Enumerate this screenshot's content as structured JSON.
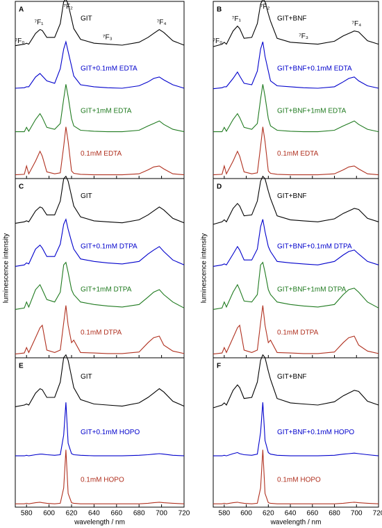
{
  "chart_data": [
    {
      "type": "line",
      "title": "A",
      "xlim": [
        570,
        720
      ],
      "xticks": [
        580,
        600,
        620,
        640,
        660,
        680,
        700,
        720
      ],
      "ylim": [
        0,
        100
      ],
      "annotations": [
        "⁷F₀",
        "⁷F₁",
        "⁷F₂",
        "⁷F₃",
        "⁷F₄"
      ],
      "x": [
        570,
        578,
        580,
        582,
        588,
        592,
        594,
        598,
        605,
        610,
        613,
        615,
        617,
        620,
        622,
        628,
        640,
        652,
        665,
        680,
        688,
        693,
        698,
        702,
        710,
        720
      ],
      "series": [
        {
          "name": "GIT",
          "color": "#000000",
          "values": [
            5,
            8,
            10,
            8,
            30,
            38,
            36,
            22,
            22,
            50,
            95,
            100,
            90,
            60,
            40,
            18,
            10,
            8,
            6,
            12,
            22,
            30,
            38,
            32,
            15,
            6
          ]
        },
        {
          "name": "GIT+0.1mM EDTA",
          "color": "#0000cc",
          "values": [
            5,
            6,
            8,
            8,
            28,
            35,
            30,
            20,
            15,
            45,
            85,
            100,
            80,
            50,
            30,
            12,
            8,
            6,
            5,
            10,
            18,
            25,
            28,
            22,
            12,
            5
          ]
        },
        {
          "name": "GIT+1mM EDTA",
          "color": "#1f7a1f",
          "values": [
            3,
            3,
            12,
            4,
            28,
            40,
            32,
            12,
            8,
            20,
            70,
            100,
            75,
            30,
            15,
            6,
            4,
            3,
            3,
            6,
            15,
            20,
            25,
            18,
            8,
            3
          ]
        },
        {
          "name": "0.1mM EDTA",
          "color": "#b0301f",
          "values": [
            2,
            3,
            20,
            4,
            30,
            50,
            40,
            8,
            4,
            6,
            60,
            100,
            70,
            10,
            5,
            3,
            2,
            2,
            2,
            4,
            12,
            18,
            20,
            14,
            4,
            2
          ]
        }
      ]
    },
    {
      "type": "line",
      "title": "B",
      "xlim": [
        570,
        720
      ],
      "xticks": [
        580,
        600,
        620,
        640,
        660,
        680,
        700,
        720
      ],
      "ylim": [
        0,
        100
      ],
      "annotations": [
        "⁷F₀",
        "⁷F₁",
        "⁷F₂",
        "⁷F₃",
        "⁷F₄"
      ],
      "x": [
        570,
        578,
        580,
        582,
        588,
        592,
        594,
        598,
        605,
        610,
        613,
        615,
        617,
        620,
        622,
        628,
        640,
        652,
        665,
        680,
        688,
        693,
        698,
        702,
        710,
        720
      ],
      "series": [
        {
          "name": "GIT+BNF",
          "color": "#000000",
          "values": [
            3,
            8,
            12,
            8,
            35,
            45,
            40,
            20,
            22,
            50,
            90,
            100,
            95,
            70,
            55,
            20,
            12,
            10,
            8,
            14,
            25,
            30,
            35,
            33,
            15,
            8
          ]
        },
        {
          "name": "GIT+BNF+0.1mM EDTA",
          "color": "#0000cc",
          "values": [
            4,
            6,
            8,
            8,
            25,
            38,
            30,
            15,
            12,
            40,
            85,
            100,
            70,
            40,
            20,
            10,
            8,
            6,
            5,
            8,
            18,
            25,
            28,
            20,
            10,
            5
          ]
        },
        {
          "name": "GIT+BNF+1mM EDTA",
          "color": "#1f7a1f",
          "values": [
            3,
            3,
            12,
            4,
            28,
            40,
            32,
            12,
            8,
            20,
            70,
            100,
            75,
            30,
            15,
            6,
            4,
            3,
            3,
            6,
            15,
            20,
            25,
            18,
            8,
            3
          ]
        },
        {
          "name": "0.1mM EDTA",
          "color": "#b0301f",
          "values": [
            2,
            3,
            20,
            4,
            30,
            50,
            40,
            8,
            4,
            6,
            60,
            100,
            70,
            10,
            5,
            3,
            2,
            2,
            2,
            4,
            12,
            18,
            20,
            14,
            4,
            2
          ]
        }
      ]
    },
    {
      "type": "line",
      "title": "C",
      "xlim": [
        570,
        720
      ],
      "xticks": [
        580,
        600,
        620,
        640,
        660,
        680,
        700,
        720
      ],
      "ylim": [
        0,
        100
      ],
      "ylabel": "luminescence intensity",
      "x": [
        570,
        578,
        580,
        582,
        588,
        592,
        594,
        598,
        605,
        610,
        613,
        615,
        617,
        620,
        622,
        628,
        640,
        652,
        665,
        680,
        688,
        693,
        698,
        702,
        710,
        720
      ],
      "series": [
        {
          "name": "GIT",
          "color": "#000000",
          "values": [
            5,
            8,
            10,
            8,
            30,
            38,
            36,
            22,
            22,
            50,
            95,
            100,
            90,
            60,
            40,
            18,
            10,
            8,
            6,
            12,
            22,
            30,
            38,
            32,
            15,
            6
          ]
        },
        {
          "name": "GIT+0.1mM DTPA",
          "color": "#0000cc",
          "values": [
            5,
            8,
            12,
            10,
            40,
            48,
            42,
            25,
            25,
            50,
            90,
            100,
            80,
            55,
            40,
            20,
            15,
            12,
            10,
            15,
            30,
            38,
            45,
            35,
            18,
            8
          ]
        },
        {
          "name": "GIT+1mM DTPA",
          "color": "#1f7a1f",
          "values": [
            5,
            8,
            20,
            10,
            45,
            55,
            45,
            25,
            20,
            40,
            95,
            100,
            80,
            45,
            35,
            20,
            15,
            12,
            10,
            15,
            30,
            40,
            45,
            35,
            20,
            8
          ]
        },
        {
          "name": "0.1mM DTPA",
          "color": "#b0301f",
          "values": [
            2,
            4,
            15,
            5,
            35,
            55,
            60,
            10,
            5,
            10,
            65,
            100,
            60,
            25,
            30,
            5,
            4,
            3,
            3,
            6,
            25,
            35,
            38,
            20,
            8,
            3
          ]
        }
      ]
    },
    {
      "type": "line",
      "title": "D",
      "xlim": [
        570,
        720
      ],
      "xticks": [
        580,
        600,
        620,
        640,
        660,
        680,
        700,
        720
      ],
      "ylim": [
        0,
        100
      ],
      "ylabel": "luminescence intensity",
      "x": [
        570,
        578,
        580,
        582,
        588,
        592,
        594,
        598,
        605,
        610,
        613,
        615,
        617,
        620,
        622,
        628,
        640,
        652,
        665,
        680,
        688,
        693,
        698,
        702,
        710,
        720
      ],
      "series": [
        {
          "name": "GIT+BNF",
          "color": "#000000",
          "values": [
            3,
            8,
            12,
            8,
            35,
            45,
            40,
            20,
            22,
            50,
            90,
            100,
            95,
            70,
            55,
            20,
            12,
            10,
            8,
            14,
            25,
            30,
            35,
            33,
            15,
            8
          ]
        },
        {
          "name": "GIT+BNF+0.1mM DTPA",
          "color": "#0000cc",
          "values": [
            5,
            8,
            10,
            8,
            30,
            45,
            38,
            18,
            18,
            40,
            85,
            100,
            75,
            45,
            35,
            15,
            12,
            10,
            8,
            15,
            28,
            35,
            38,
            30,
            15,
            8
          ]
        },
        {
          "name": "GIT+BNF+1mM DTPA",
          "color": "#1f7a1f",
          "values": [
            5,
            8,
            20,
            10,
            40,
            55,
            45,
            22,
            20,
            35,
            95,
            100,
            80,
            45,
            35,
            20,
            15,
            12,
            10,
            15,
            35,
            45,
            48,
            40,
            20,
            8
          ]
        },
        {
          "name": "0.1mM DTPA",
          "color": "#b0301f",
          "values": [
            2,
            4,
            15,
            5,
            35,
            55,
            60,
            10,
            5,
            10,
            65,
            100,
            60,
            25,
            30,
            5,
            4,
            3,
            3,
            6,
            25,
            35,
            38,
            20,
            8,
            3
          ]
        }
      ]
    },
    {
      "type": "line",
      "title": "E",
      "xlim": [
        570,
        720
      ],
      "xticks": [
        580,
        600,
        620,
        640,
        660,
        680,
        700,
        720
      ],
      "ylim": [
        0,
        100
      ],
      "xlabel": "wavelength / nm",
      "x": [
        570,
        578,
        580,
        582,
        588,
        592,
        594,
        598,
        605,
        610,
        613,
        615,
        617,
        620,
        622,
        628,
        640,
        652,
        665,
        680,
        688,
        693,
        698,
        702,
        710,
        720
      ],
      "series": [
        {
          "name": "GIT",
          "color": "#000000",
          "values": [
            5,
            8,
            10,
            8,
            30,
            38,
            36,
            22,
            22,
            50,
            95,
            100,
            90,
            60,
            40,
            18,
            10,
            8,
            6,
            12,
            22,
            30,
            38,
            32,
            15,
            6
          ]
        },
        {
          "name": "GIT+0.1mM HOPO",
          "color": "#0000cc",
          "values": [
            2,
            2,
            3,
            2,
            4,
            5,
            5,
            4,
            3,
            4,
            40,
            100,
            25,
            6,
            4,
            3,
            2,
            2,
            2,
            3,
            4,
            5,
            6,
            5,
            3,
            2
          ]
        },
        {
          "name": "0.1mM HOPO",
          "color": "#b0301f",
          "values": [
            1,
            1,
            2,
            1,
            3,
            4,
            3,
            2,
            1,
            2,
            30,
            100,
            20,
            3,
            2,
            1,
            1,
            1,
            1,
            1,
            2,
            3,
            4,
            3,
            2,
            1
          ]
        }
      ]
    },
    {
      "type": "line",
      "title": "F",
      "xlim": [
        570,
        720
      ],
      "xticks": [
        580,
        600,
        620,
        640,
        660,
        680,
        700,
        720
      ],
      "ylim": [
        0,
        100
      ],
      "xlabel": "wavelength / nm",
      "x": [
        570,
        578,
        580,
        582,
        588,
        592,
        594,
        598,
        605,
        610,
        613,
        615,
        617,
        620,
        622,
        628,
        640,
        652,
        665,
        680,
        688,
        693,
        698,
        702,
        710,
        720
      ],
      "series": [
        {
          "name": "GIT+BNF",
          "color": "#000000",
          "values": [
            3,
            8,
            12,
            8,
            35,
            45,
            40,
            20,
            22,
            50,
            90,
            100,
            95,
            70,
            55,
            20,
            12,
            10,
            8,
            14,
            25,
            30,
            35,
            33,
            15,
            8
          ]
        },
        {
          "name": "GIT+BNF+0.1mM HOPO",
          "color": "#0000cc",
          "values": [
            2,
            2,
            3,
            2,
            6,
            8,
            6,
            4,
            3,
            5,
            45,
            100,
            30,
            8,
            5,
            3,
            2,
            2,
            2,
            3,
            5,
            6,
            7,
            6,
            4,
            2
          ]
        },
        {
          "name": "0.1mM HOPO",
          "color": "#b0301f",
          "values": [
            1,
            1,
            2,
            1,
            3,
            4,
            3,
            2,
            1,
            2,
            30,
            100,
            20,
            3,
            2,
            1,
            1,
            1,
            1,
            1,
            2,
            3,
            4,
            3,
            2,
            1
          ]
        }
      ]
    }
  ]
}
